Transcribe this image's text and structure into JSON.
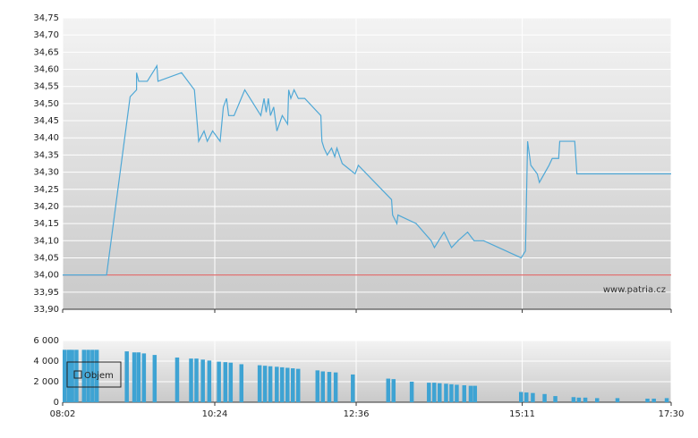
{
  "chart_data": [
    {
      "type": "line",
      "series": [
        {
          "color": "#4fa8d6",
          "x": [
            482,
            523,
            545,
            551,
            551,
            553,
            561,
            570,
            571,
            593,
            605,
            609,
            614,
            617,
            622,
            629,
            632,
            635,
            637,
            642,
            652,
            667,
            670,
            672,
            674,
            676,
            679,
            682,
            687,
            692,
            693,
            695,
            698,
            702,
            708,
            723,
            724,
            726,
            729,
            733,
            736,
            738,
            743,
            755,
            758,
            789,
            790,
            794,
            795,
            812,
            826,
            829,
            838,
            845,
            851,
            860,
            866,
            875,
            910,
            914,
            916,
            919,
            925,
            927,
            936,
            939,
            945,
            946,
            960,
            962,
            1050
          ],
          "values": [
            34.0,
            34.0,
            34.52,
            34.54,
            34.59,
            34.565,
            34.565,
            34.61,
            34.565,
            34.59,
            34.54,
            34.39,
            34.42,
            34.39,
            34.42,
            34.39,
            34.49,
            34.515,
            34.465,
            34.465,
            34.54,
            34.465,
            34.515,
            34.475,
            34.515,
            34.465,
            34.49,
            34.42,
            34.465,
            34.44,
            34.54,
            34.515,
            34.54,
            34.515,
            34.515,
            34.465,
            34.39,
            34.37,
            34.35,
            34.37,
            34.345,
            34.37,
            34.325,
            34.295,
            34.32,
            34.22,
            34.175,
            34.15,
            34.175,
            34.15,
            34.1,
            34.08,
            34.125,
            34.08,
            34.1,
            34.125,
            34.1,
            34.1,
            34.05,
            34.07,
            34.39,
            34.32,
            34.295,
            34.27,
            34.32,
            34.34,
            34.34,
            34.39,
            34.39,
            34.295,
            34.295
          ]
        }
      ],
      "baseline": 34.0,
      "baseline_color": "#e07070",
      "xlim": [
        482,
        1050
      ],
      "ylim": [
        33.9,
        34.75
      ],
      "yticks": [
        {
          "value": 33.9,
          "label": "33,90"
        },
        {
          "value": 33.95,
          "label": "33,95"
        },
        {
          "value": 34.0,
          "label": "34,00"
        },
        {
          "value": 34.05,
          "label": "34,05"
        },
        {
          "value": 34.1,
          "label": "34,10"
        },
        {
          "value": 34.15,
          "label": "34,15"
        },
        {
          "value": 34.2,
          "label": "34,20"
        },
        {
          "value": 34.25,
          "label": "34,25"
        },
        {
          "value": 34.3,
          "label": "34,30"
        },
        {
          "value": 34.35,
          "label": "34,35"
        },
        {
          "value": 34.4,
          "label": "34,40"
        },
        {
          "value": 34.45,
          "label": "34,45"
        },
        {
          "value": 34.5,
          "label": "34,50"
        },
        {
          "value": 34.55,
          "label": "34,55"
        },
        {
          "value": 34.6,
          "label": "34,60"
        },
        {
          "value": 34.65,
          "label": "34,65"
        },
        {
          "value": 34.7,
          "label": "34,70"
        },
        {
          "value": 34.75,
          "label": "34,75"
        }
      ],
      "grid": true,
      "watermark": "www.patria.cz"
    },
    {
      "type": "bar",
      "series": [
        {
          "name": "Objem",
          "color": "#3ea3d3",
          "x": [
            482,
            486,
            489,
            493,
            500,
            504,
            508,
            512,
            540,
            547,
            551,
            556,
            566,
            587,
            600,
            605,
            611,
            617,
            626,
            632,
            637,
            647,
            664,
            669,
            674,
            680,
            685,
            690,
            695,
            700,
            718,
            723,
            729,
            735,
            751,
            784,
            789,
            806,
            822,
            827,
            832,
            838,
            843,
            848,
            855,
            861,
            865,
            908,
            913,
            919,
            930,
            940,
            957,
            962,
            968,
            979,
            998,
            1026,
            1032,
            1044
          ],
          "values": [
            5100,
            5100,
            5100,
            5100,
            5100,
            5100,
            5100,
            5100,
            4950,
            4850,
            4850,
            4750,
            4600,
            4350,
            4250,
            4250,
            4150,
            4050,
            3950,
            3900,
            3850,
            3700,
            3600,
            3550,
            3500,
            3450,
            3400,
            3350,
            3300,
            3250,
            3100,
            3000,
            2950,
            2900,
            2700,
            2300,
            2250,
            2000,
            1900,
            1900,
            1850,
            1800,
            1750,
            1700,
            1650,
            1600,
            1600,
            1000,
            950,
            900,
            800,
            600,
            500,
            450,
            450,
            400,
            400,
            350,
            350,
            400
          ]
        }
      ],
      "xlim": [
        482,
        1050
      ],
      "xticks": [
        {
          "value": 482,
          "label": "08:02"
        },
        {
          "value": 624,
          "label": "10:24"
        },
        {
          "value": 756,
          "label": "12:36"
        },
        {
          "value": 911,
          "label": "15:11"
        },
        {
          "value": 1050,
          "label": "17:30"
        }
      ],
      "ylim": [
        0,
        6000
      ],
      "yticks": [
        0,
        {
          "value": 2000,
          "label": "2 000"
        },
        {
          "value": 4000,
          "label": "4 000"
        },
        {
          "value": 6000,
          "label": "6 000"
        }
      ],
      "grid": true,
      "legend": "upper left"
    }
  ]
}
